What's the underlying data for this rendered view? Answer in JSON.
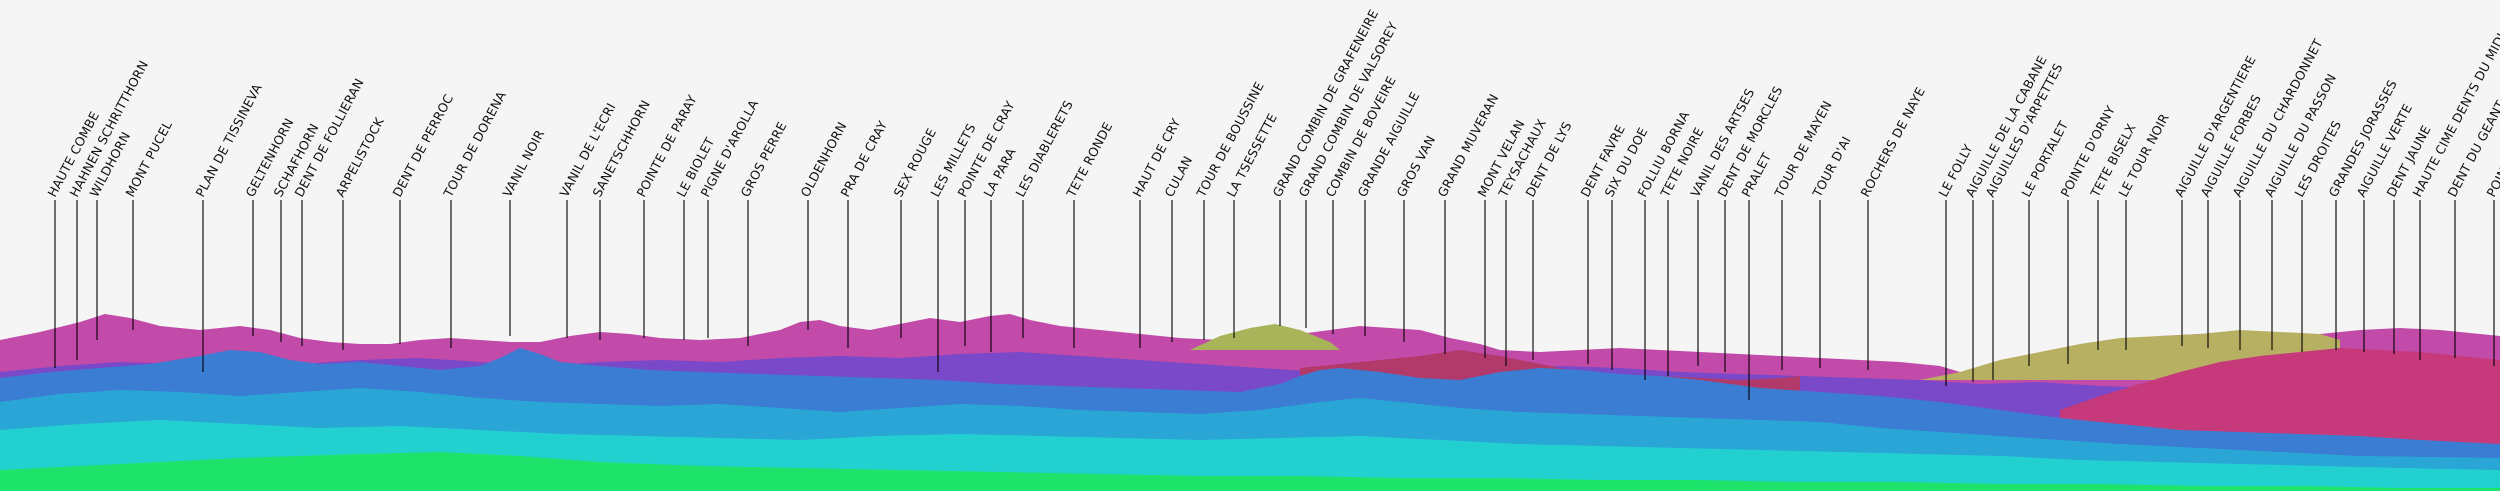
{
  "view": {
    "background": "#f5f5f5",
    "label_color": "#111111"
  },
  "layer_colors": [
    "#cc3fa6",
    "#2f7fd8",
    "#2ab7d8",
    "#22d5c8",
    "#18e060"
  ],
  "peaks": [
    {
      "name": "HAUTE COMBE"
    },
    {
      "name": "HAHNEN SCHRITTHORN"
    },
    {
      "name": "WILDHORN"
    },
    {
      "name": "MONT PUCEL"
    },
    {
      "name": "PLAN DE TISSINEVA"
    },
    {
      "name": "GELTENHORN"
    },
    {
      "name": "SCHAFHORN"
    },
    {
      "name": "DENT DE FOLLIERAN"
    },
    {
      "name": "ARPELISTOCK"
    },
    {
      "name": "DENT DE PERROC"
    },
    {
      "name": "TOUR DE DORENA"
    },
    {
      "name": "VANIL NOIR"
    },
    {
      "name": "VANIL DE L'ECRI"
    },
    {
      "name": "SANETSCHHORN"
    },
    {
      "name": "POINTE DE PARAY"
    },
    {
      "name": "LE BIOLET"
    },
    {
      "name": "PIGNE D'AROLLA"
    },
    {
      "name": "GROS PERRE"
    },
    {
      "name": "OLDENHORN"
    },
    {
      "name": "PRA DE CRAY"
    },
    {
      "name": "SEX ROUGE"
    },
    {
      "name": "LES MILLETS"
    },
    {
      "name": "POINTE DE CRAY"
    },
    {
      "name": "LA PARA"
    },
    {
      "name": "LES DIABLERETS"
    },
    {
      "name": "TETE RONDE"
    },
    {
      "name": "HAUT DE CRY"
    },
    {
      "name": "CULAN"
    },
    {
      "name": "TOUR DE BOUSSINE"
    },
    {
      "name": "LA TSESSETTE"
    },
    {
      "name": "GRAND COMBIN DE GRAFENEIRE"
    },
    {
      "name": "GRAND COMBIN DE VALSOREY"
    },
    {
      "name": "COMBIN DE BOVEIRE"
    },
    {
      "name": "GRANDE AIGUILLE"
    },
    {
      "name": "GROS VAN"
    },
    {
      "name": "GRAND MUVERAN"
    },
    {
      "name": "MONT VELAN"
    },
    {
      "name": "TEYSACHAUX"
    },
    {
      "name": "DENT DE LYS"
    },
    {
      "name": "DENT FAVRE"
    },
    {
      "name": "SIX DU DOE"
    },
    {
      "name": "FOLLIU BORNA"
    },
    {
      "name": "TETE NOIRE"
    },
    {
      "name": "VANIL DES ARTSES"
    },
    {
      "name": "DENT DE MORCLES"
    },
    {
      "name": "PRALET"
    },
    {
      "name": "TOUR DE MAYEN"
    },
    {
      "name": "TOUR D'AI"
    },
    {
      "name": "ROCHERS DE NAYE"
    },
    {
      "name": "LE FOLLY"
    },
    {
      "name": "AIGUILLE DE LA CABANE"
    },
    {
      "name": "AIGUILLES D'ARPETTES"
    },
    {
      "name": "LE PORTALET"
    },
    {
      "name": "POINTE D'ORNY"
    },
    {
      "name": "TETE BISELX"
    },
    {
      "name": "LE TOUR NOIR"
    },
    {
      "name": "AIGUILLE D'ARGENTIERE"
    },
    {
      "name": "AIGUILLE FORBES"
    },
    {
      "name": "AIGUILLE DU CHARDONNET"
    },
    {
      "name": "AIGUILLE DU PASSON"
    },
    {
      "name": "LES DROITES"
    },
    {
      "name": "GRANDES JORASSES"
    },
    {
      "name": "AIGUILLE VERTE"
    },
    {
      "name": "DENT JAUNE"
    },
    {
      "name": "HAUTE CIME DENTS DU MIDI"
    },
    {
      "name": "DENT DU GEANT"
    },
    {
      "name": "POINTE"
    }
  ]
}
